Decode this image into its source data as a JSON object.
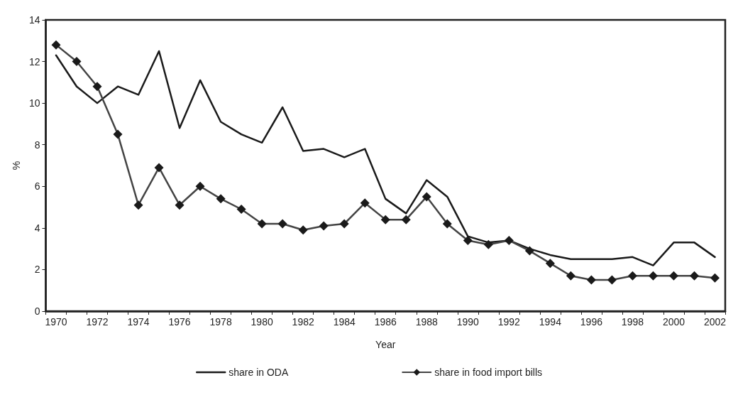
{
  "chart_data": {
    "type": "line",
    "xlabel": "Year",
    "ylabel": "%",
    "categories": [
      "1970",
      null,
      "1972",
      null,
      "1974",
      null,
      "1976",
      null,
      "1978",
      null,
      "1980",
      null,
      "1982",
      null,
      "1984",
      null,
      "1986",
      null,
      "1988",
      null,
      "1990",
      null,
      "1992",
      null,
      "1994",
      null,
      "1996",
      null,
      "1998",
      null,
      "2000",
      null,
      "2002"
    ],
    "series": [
      {
        "name": "share in ODA",
        "color": "#1a1a1a",
        "marker": "none",
        "values": [
          12.3,
          10.8,
          10.0,
          10.8,
          10.4,
          12.5,
          8.8,
          11.1,
          9.1,
          8.5,
          8.1,
          9.8,
          7.7,
          7.8,
          7.4,
          7.8,
          5.4,
          4.7,
          6.3,
          5.5,
          3.6,
          3.3,
          3.4,
          3.0,
          2.7,
          2.5,
          2.5,
          2.5,
          2.6,
          2.2,
          3.3,
          3.3,
          2.6
        ]
      },
      {
        "name": "share in food import bills",
        "color": "#444444",
        "marker": "diamond",
        "values": [
          12.8,
          12.0,
          10.8,
          8.5,
          5.1,
          6.9,
          5.1,
          6.0,
          5.4,
          4.9,
          4.2,
          4.2,
          3.9,
          4.1,
          4.2,
          5.2,
          4.4,
          4.4,
          5.5,
          4.2,
          3.4,
          3.2,
          3.4,
          2.9,
          2.3,
          1.7,
          1.5,
          1.5,
          1.7,
          1.7,
          1.7,
          1.7,
          1.6
        ]
      }
    ],
    "ylim": [
      0,
      14
    ],
    "yticks": [
      0,
      2,
      4,
      6,
      8,
      10,
      12,
      14
    ],
    "grid": false,
    "legend": "bottom",
    "line_style": "solid"
  }
}
